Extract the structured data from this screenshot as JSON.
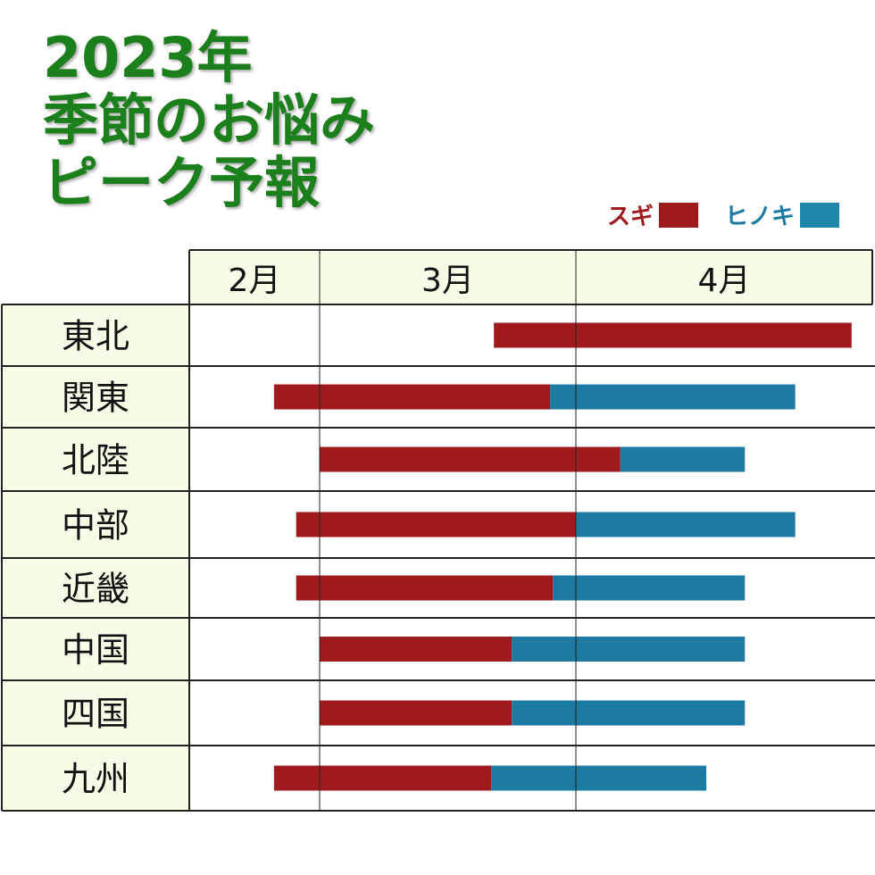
{
  "title": {
    "line1": "2023年",
    "line2": "季節のお悩み",
    "line3": "ピーク予報"
  },
  "colors": {
    "sugi": "#9e1a1c",
    "hinoki": "#1c7aa3",
    "title": "#1b7f1b",
    "header_bg": "#f6fde6"
  },
  "chart_data": {
    "type": "gantt",
    "title": "2023年 季節のお悩み ピーク予報",
    "legend": [
      {
        "name": "スギ",
        "color": "#9e1a1c"
      },
      {
        "name": "ヒノキ",
        "color": "#1c7aa3"
      }
    ],
    "legend_position": "top-right",
    "months": [
      "2月",
      "3月",
      "4月"
    ],
    "value_unit": "month + fraction of that month's column (e.g. 3.5 = mid-March)",
    "rows": [
      {
        "region": "東北",
        "sugi": [
          3.68,
          4.93
        ],
        "hinoki": null
      },
      {
        "region": "関東",
        "sugi": [
          2.65,
          3.9
        ],
        "hinoki": [
          3.9,
          4.74
        ]
      },
      {
        "region": "北陸",
        "sugi": [
          3.0,
          4.15
        ],
        "hinoki": [
          4.15,
          4.57
        ]
      },
      {
        "region": "中部",
        "sugi": [
          2.82,
          4.0
        ],
        "hinoki": [
          4.0,
          4.74
        ]
      },
      {
        "region": "近畿",
        "sugi": [
          2.82,
          3.91
        ],
        "hinoki": [
          3.91,
          4.57
        ]
      },
      {
        "region": "中国",
        "sugi": [
          3.0,
          3.75
        ],
        "hinoki": [
          3.75,
          4.57
        ]
      },
      {
        "region": "四国",
        "sugi": [
          3.0,
          3.75
        ],
        "hinoki": [
          3.75,
          4.57
        ]
      },
      {
        "region": "九州",
        "sugi": [
          2.65,
          3.67
        ],
        "hinoki": [
          3.67,
          4.44
        ]
      }
    ]
  }
}
